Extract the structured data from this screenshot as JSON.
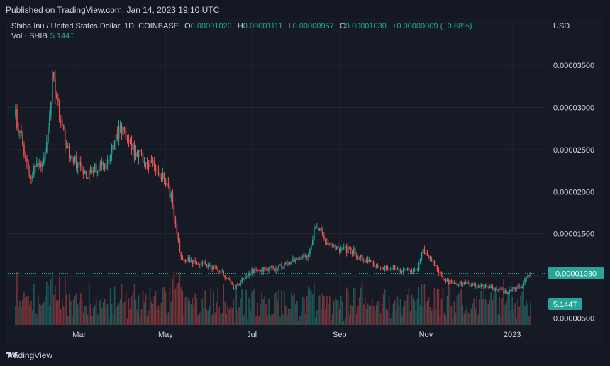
{
  "header": {
    "published": "Published on TradingView.com, Jan 14, 2023 19:10 UTC"
  },
  "legend": {
    "symbol": "Shiba Inu / United States Dollar, 1D, COINBASE",
    "o_label": "O",
    "o_value": "0.00001020",
    "h_label": "H",
    "h_value": "0.00001111",
    "l_label": "L",
    "l_value": "0.00000957",
    "c_label": "C",
    "c_value": "0.00001030",
    "change": "+0.00000009 (+0.88%)",
    "vol_label": "Vol · SHIB",
    "vol_value": "5.144T"
  },
  "axis": {
    "currency": "USD"
  },
  "footer": {
    "brand": "TradingView"
  },
  "colors": {
    "up": "#26a69a",
    "down": "#ef5350",
    "price_tag": "#26a69a"
  },
  "chart_data": {
    "type": "candlestick",
    "title": "",
    "x_ticks": [
      "Mar",
      "May",
      "Jul",
      "Sep",
      "Nov",
      "2023"
    ],
    "y_ticks": [
      "0.00003500",
      "0.00003000",
      "0.00002500",
      "0.00002000",
      "0.00001500",
      "0.00001000",
      "0.00000500"
    ],
    "y_tick_values": [
      3.5e-05,
      3e-05,
      2.5e-05,
      2e-05,
      1.5e-05,
      1e-05,
      5e-06
    ],
    "ylim": [
      4.2e-06,
      3.77e-05
    ],
    "last_price": 1.03e-05,
    "last_price_label": "0.00001030",
    "last_volume_label": "5.144T",
    "approx_close_path": [
      {
        "date": "2022-01-15",
        "close": 2.9e-05
      },
      {
        "date": "2022-01-25",
        "close": 2.18e-05
      },
      {
        "date": "2022-02-05",
        "close": 2.4e-05
      },
      {
        "date": "2022-02-10",
        "close": 3.35e-05
      },
      {
        "date": "2022-02-20",
        "close": 2.5e-05
      },
      {
        "date": "2022-03-05",
        "close": 2.2e-05
      },
      {
        "date": "2022-03-20",
        "close": 2.35e-05
      },
      {
        "date": "2022-03-30",
        "close": 2.75e-05
      },
      {
        "date": "2022-04-10",
        "close": 2.45e-05
      },
      {
        "date": "2022-04-25",
        "close": 2.3e-05
      },
      {
        "date": "2022-05-05",
        "close": 1.95e-05
      },
      {
        "date": "2022-05-12",
        "close": 1.2e-05
      },
      {
        "date": "2022-05-25",
        "close": 1.15e-05
      },
      {
        "date": "2022-06-10",
        "close": 1.05e-05
      },
      {
        "date": "2022-06-18",
        "close": 8.5e-06
      },
      {
        "date": "2022-06-30",
        "close": 1.05e-05
      },
      {
        "date": "2022-07-20",
        "close": 1.1e-05
      },
      {
        "date": "2022-08-10",
        "close": 1.25e-05
      },
      {
        "date": "2022-08-15",
        "close": 1.6e-05
      },
      {
        "date": "2022-08-25",
        "close": 1.35e-05
      },
      {
        "date": "2022-09-10",
        "close": 1.3e-05
      },
      {
        "date": "2022-09-25",
        "close": 1.12e-05
      },
      {
        "date": "2022-10-15",
        "close": 1.08e-05
      },
      {
        "date": "2022-10-25",
        "close": 1.05e-05
      },
      {
        "date": "2022-10-30",
        "close": 1.3e-05
      },
      {
        "date": "2022-11-08",
        "close": 1.1e-05
      },
      {
        "date": "2022-11-15",
        "close": 9.3e-06
      },
      {
        "date": "2022-12-01",
        "close": 9e-06
      },
      {
        "date": "2022-12-15",
        "close": 8.7e-06
      },
      {
        "date": "2022-12-28",
        "close": 8.1e-06
      },
      {
        "date": "2023-01-08",
        "close": 8.9e-06
      },
      {
        "date": "2023-01-14",
        "close": 1.03e-05
      }
    ]
  }
}
